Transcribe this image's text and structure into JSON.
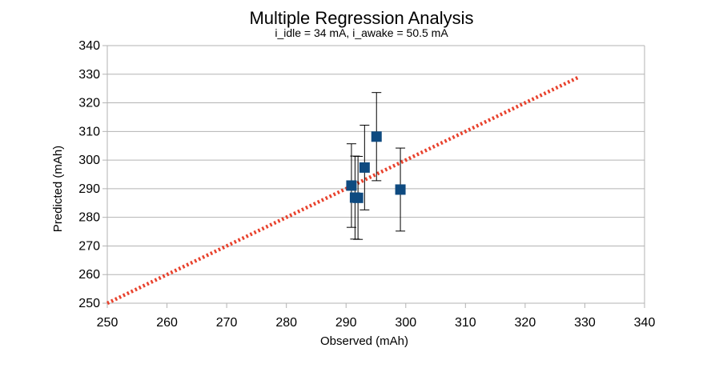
{
  "chart_data": {
    "type": "scatter",
    "title": "Multiple Regression Analysis",
    "subtitle": "i_idle = 34 mA, i_awake = 50.5 mA",
    "xlabel": "Observed (mAh)",
    "ylabel": "Predicted (mAh)",
    "xlim": [
      250,
      340
    ],
    "ylim": [
      250,
      340
    ],
    "xticks": [
      250,
      260,
      270,
      280,
      290,
      300,
      310,
      320,
      330,
      340
    ],
    "yticks": [
      250,
      260,
      270,
      280,
      290,
      300,
      310,
      320,
      330,
      340
    ],
    "grid": "horizontal",
    "legend": "none",
    "points": [
      {
        "x": 290.9,
        "y": 291.1,
        "err": 14.6
      },
      {
        "x": 291.5,
        "y": 286.9,
        "err": 14.5
      },
      {
        "x": 292.0,
        "y": 286.8,
        "err": 14.5
      },
      {
        "x": 293.1,
        "y": 297.4,
        "err": 14.8
      },
      {
        "x": 295.1,
        "y": 308.2,
        "err": 15.4
      },
      {
        "x": 299.1,
        "y": 289.7,
        "err": 14.5
      }
    ],
    "reference_line": {
      "from": [
        250,
        250
      ],
      "to": [
        329,
        329
      ],
      "color": "#e8412c"
    },
    "marker_color": "#0e4a80"
  }
}
